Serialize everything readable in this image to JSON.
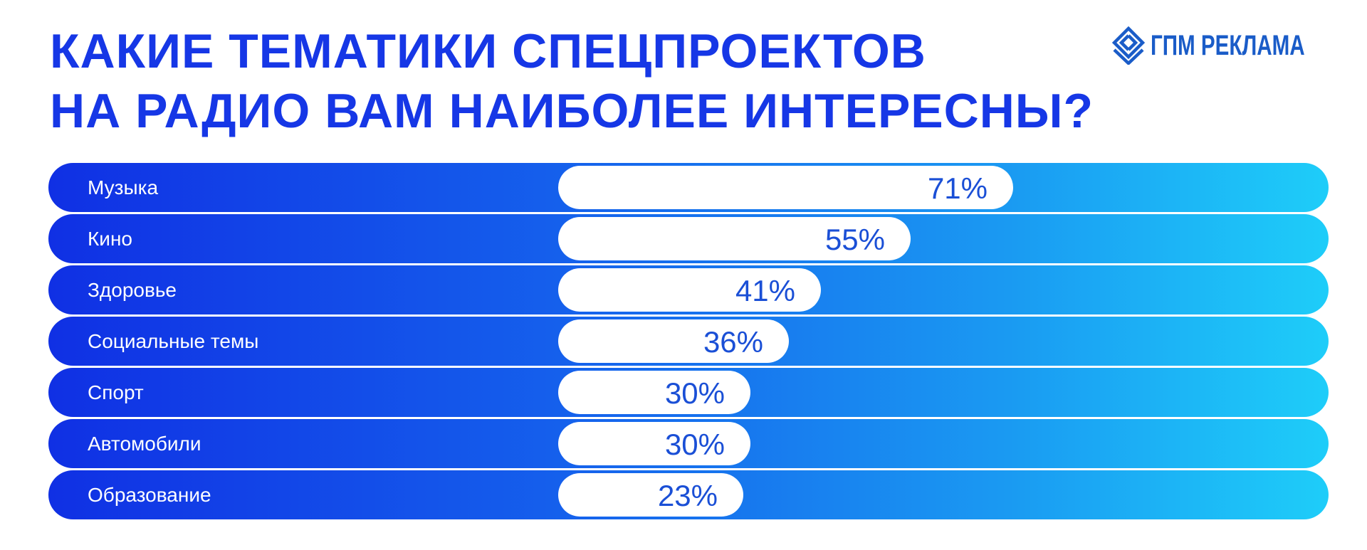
{
  "title_lines": [
    "КАКИЕ ТЕМАТИКИ СПЕЦПРОЕКТОВ",
    "НА РАДИО ВАМ НАИБОЛЕЕ ИНТЕРЕСНЫ?"
  ],
  "logo": {
    "text": "ГПМ РЕКЛАМА",
    "icon": "gpm-diamond-logo-icon"
  },
  "colors": {
    "title": "#1637e6",
    "logo": "#1a5cc8",
    "row_gradient_start": "#1030e4",
    "row_gradient_end": "#1ecdf9",
    "bar": "#ffffff",
    "value_text": "#1a4fd6"
  },
  "chart_data": {
    "type": "bar",
    "orientation": "horizontal",
    "title": "КАКИЕ ТЕМАТИКИ СПЕЦПРОЕКТОВ НА РАДИО ВАМ НАИБОЛЕЕ ИНТЕРЕСНЫ?",
    "categories": [
      "Музыка",
      "Кино",
      "Здоровье",
      "Социальные темы",
      "Спорт",
      "Автомобили",
      "Образование"
    ],
    "values": [
      71,
      55,
      41,
      36,
      30,
      30,
      23
    ],
    "value_labels": [
      "71%",
      "55%",
      "41%",
      "36%",
      "30%",
      "30%",
      "23%"
    ],
    "unit": "%",
    "xlim": [
      0,
      100
    ],
    "grid": false,
    "legend": "none"
  }
}
